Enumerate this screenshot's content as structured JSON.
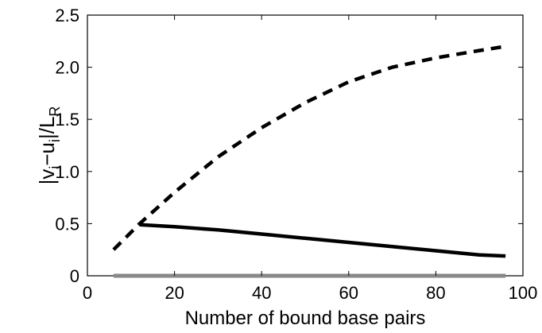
{
  "chart_data": {
    "type": "line",
    "title": "",
    "xlabel": "Number of bound base pairs",
    "ylabel": {
      "p1": "|v",
      "s1": "i",
      "p2": "−u",
      "s2": "i",
      "p3": "|/L",
      "s3": "R"
    },
    "xlim": [
      0,
      100
    ],
    "ylim": [
      0,
      2.5
    ],
    "xticks": [
      0,
      20,
      40,
      60,
      80,
      100
    ],
    "yticks": [
      "0",
      "0.5",
      "1.0",
      "1.5",
      "2.0",
      "2.5"
    ],
    "grid": false,
    "series": [
      {
        "style": "dashed",
        "color": "#000000",
        "x": [
          6,
          12,
          20,
          30,
          40,
          50,
          60,
          70,
          80,
          90,
          96
        ],
        "y": [
          0.25,
          0.5,
          0.8,
          1.14,
          1.42,
          1.66,
          1.86,
          2.0,
          2.09,
          2.16,
          2.2
        ]
      },
      {
        "style": "solid",
        "color": "#000000",
        "x": [
          12,
          20,
          30,
          40,
          50,
          60,
          70,
          80,
          90,
          96
        ],
        "y": [
          0.49,
          0.47,
          0.44,
          0.4,
          0.36,
          0.32,
          0.28,
          0.24,
          0.2,
          0.19
        ]
      },
      {
        "style": "solid",
        "color": "#888888",
        "x": [
          6,
          96
        ],
        "y": [
          0.0,
          0.0
        ]
      }
    ]
  }
}
